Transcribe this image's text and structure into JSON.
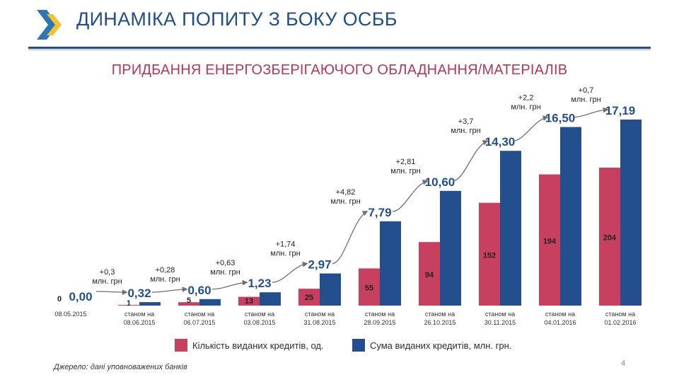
{
  "header": {
    "title": "ДИНАМІКА ПОПИТУ З БОКУ ОСББ",
    "subtitle": "ПРИДБАННЯ ЕНЕРГОЗБЕРІГАЮЧОГО ОБЛАДНАННЯ/МАТЕРІАЛІВ",
    "logo_icon": "chevron-logo-icon"
  },
  "colors": {
    "title": "#1f4e8c",
    "subtitle": "#b8345a",
    "count_bar": "#c8405f",
    "sum_bar": "#234f8e",
    "logo_blue": "#2e75b6",
    "logo_yellow": "#f2c230"
  },
  "chart_data": {
    "type": "bar",
    "categories": [
      [
        "08.05.2015"
      ],
      [
        "станом на",
        "08.06.2015"
      ],
      [
        "станом на",
        "06.07.2015"
      ],
      [
        "станом на",
        "03.08.2015"
      ],
      [
        "станом на",
        "31.08.2015"
      ],
      [
        "станом на",
        "28.09.2015"
      ],
      [
        "станом на",
        "26.10.2015"
      ],
      [
        "станом на",
        "30.11.2015"
      ],
      [
        "станом на",
        "04.01.2016"
      ],
      [
        "станом на",
        "01.02.2016"
      ]
    ],
    "series": [
      {
        "name": "Кількість виданих кредитів, од.",
        "values": [
          0,
          1,
          5,
          13,
          25,
          55,
          94,
          152,
          194,
          204
        ],
        "labels": [
          "0",
          "1",
          "5",
          "13",
          "25",
          "55",
          "94",
          "152",
          "194",
          "204"
        ]
      },
      {
        "name": "Сума виданих кредитів, млн. грн.",
        "values": [
          0.0,
          0.32,
          0.6,
          1.23,
          2.97,
          7.79,
          10.6,
          14.3,
          16.5,
          17.19
        ],
        "labels": [
          "0,00",
          "0,32",
          "0,60",
          "1,23",
          "2,97",
          "7,79",
          "10,60",
          "14,30",
          "16,50",
          "17,19"
        ]
      }
    ],
    "increments": [
      [
        "+0,3",
        "млн. грн"
      ],
      [
        "+0,28",
        "млн. грн"
      ],
      [
        "+0,63",
        "млн. грн"
      ],
      [
        "+1,74",
        "млн. грн"
      ],
      [
        "+4,82",
        "млн. грн"
      ],
      [
        "+2,81",
        "млн. грн"
      ],
      [
        "+3,7",
        "млн. грн"
      ],
      [
        "+2,2",
        "млн. грн"
      ],
      [
        "+0,7",
        "млн. грн"
      ]
    ],
    "title": "",
    "xlabel": "",
    "ylabel": "",
    "legend_position": "bottom",
    "grid": false
  },
  "legend": {
    "count_label": "Кількість виданих кредитів, од.",
    "sum_label": "Сума виданих кредитів, млн. грн."
  },
  "footer": {
    "source": "Джерело: дані уповноважених банків",
    "page_number": "4"
  }
}
